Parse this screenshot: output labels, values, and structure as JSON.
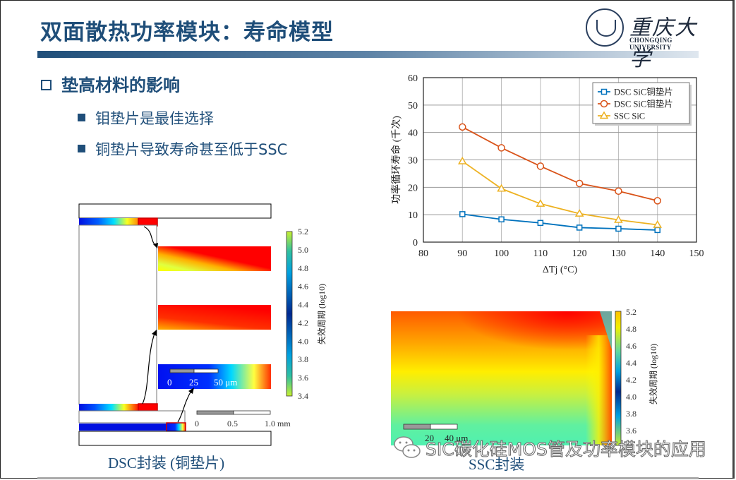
{
  "header": {
    "title": "双面散热功率模块：寿命模型",
    "logo_cn": "重庆大学",
    "logo_en": "CHONGQING UNIVERSITY"
  },
  "content": {
    "heading": "垫高材料的影响",
    "bullets": [
      "钼垫片是最佳选择",
      "铜垫片导致寿命甚至低于SSC"
    ]
  },
  "dsc_figure": {
    "caption": "DSC封装 (铜垫片)",
    "colorbar_label": "失效周期 (log10)",
    "colorbar_ticks": [
      "5.2",
      "5.0",
      "4.8",
      "4.6",
      "4.4",
      "4.2",
      "4.0",
      "3.8",
      "3.6",
      "3.4"
    ],
    "scale_small": {
      "labels": [
        "0",
        "25",
        "50 μm"
      ]
    },
    "scale_large": {
      "labels": [
        "0",
        "0.5",
        "1.0 mm"
      ]
    }
  },
  "ssc_figure": {
    "caption": "SSC封装",
    "colorbar_label": "失效周期 (log10)",
    "colorbar_ticks": [
      "5.2",
      "4.8",
      "4.6",
      "4.4",
      "4.2",
      "4.0",
      "3.8",
      "3.6"
    ],
    "scale": {
      "labels": [
        "20",
        "40 μm"
      ]
    }
  },
  "watermark": "SIC碳化硅MOS管及功率模块的应用",
  "colors": {
    "title_blue": "#1f4e79",
    "series_cu": "#0072bd",
    "series_mo": "#d95319",
    "series_ssc": "#edb120"
  },
  "chart_data": {
    "type": "line",
    "title": "",
    "xlabel": "ΔTj (°C)",
    "ylabel": "功率循环寿命 (千次)",
    "x": [
      90,
      100,
      110,
      120,
      130,
      140
    ],
    "xlim": [
      80,
      150
    ],
    "ylim": [
      0,
      60
    ],
    "xticks": [
      "80",
      "90",
      "100",
      "110",
      "120",
      "130",
      "140",
      "150"
    ],
    "yticks": [
      "0",
      "10",
      "20",
      "30",
      "40",
      "50",
      "60"
    ],
    "grid": true,
    "legend_position": "upper right",
    "series": [
      {
        "name": "DSC SiC铜垫片",
        "marker": "square",
        "color": "#0072bd",
        "values": [
          10.2,
          8.3,
          7.0,
          5.3,
          4.9,
          4.4
        ]
      },
      {
        "name": "DSC SiC钼垫片",
        "marker": "circle",
        "color": "#d95319",
        "values": [
          42.0,
          34.4,
          27.7,
          21.4,
          18.6,
          15.1
        ]
      },
      {
        "name": "SSC SiC",
        "marker": "triangle",
        "color": "#edb120",
        "values": [
          29.5,
          19.5,
          14.0,
          10.4,
          8.1,
          6.3
        ]
      }
    ]
  }
}
